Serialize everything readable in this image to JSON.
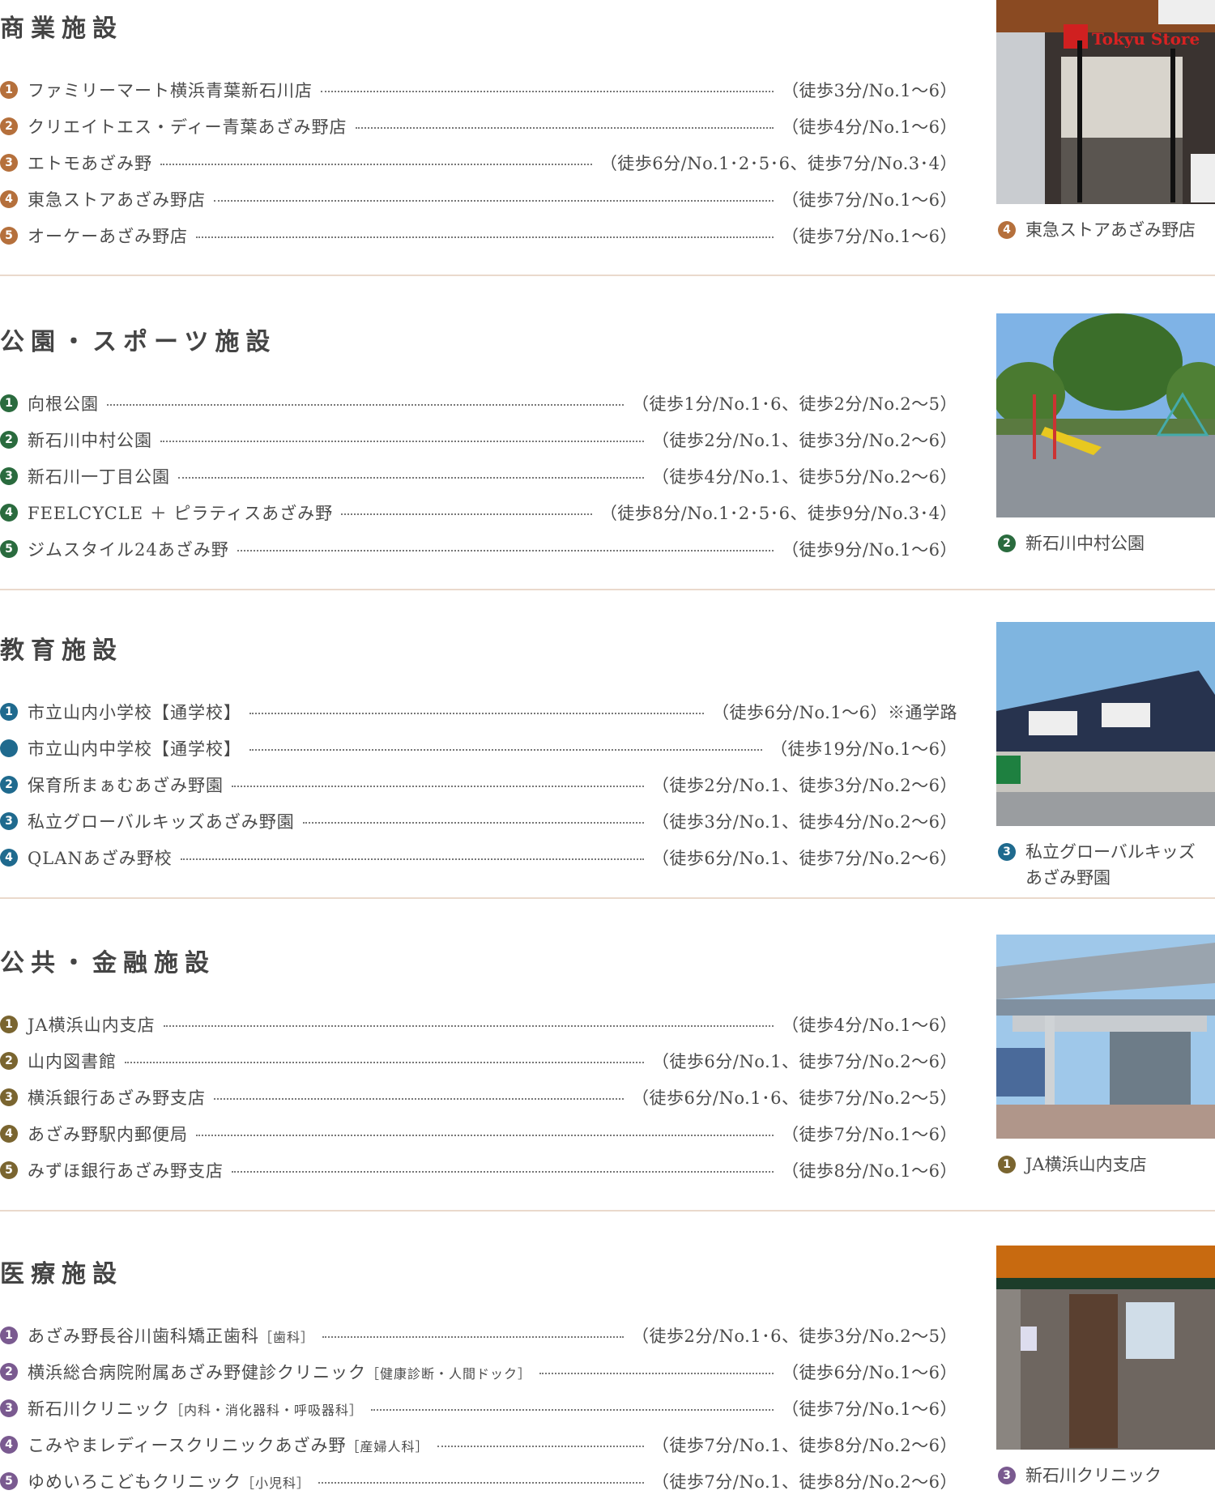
{
  "sections": [
    {
      "title": "商業施設",
      "color": "#b5703c",
      "items": [
        {
          "num": "1",
          "name": "ファミリーマート横浜青葉新石川店",
          "value": "（徒歩3分/No.1〜6）"
        },
        {
          "num": "2",
          "name": "クリエイトエス・ディー青葉あざみ野店",
          "value": "（徒歩4分/No.1〜6）"
        },
        {
          "num": "3",
          "name": "エトモあざみ野",
          "value": "（徒歩6分/No.1･2･5･6、徒歩7分/No.3･4）"
        },
        {
          "num": "4",
          "name": "東急ストアあざみ野店",
          "value": "（徒歩7分/No.1〜6）"
        },
        {
          "num": "5",
          "name": "オーケーあざみ野店",
          "value": "（徒歩7分/No.1〜6）"
        }
      ],
      "photo": {
        "subject": "store",
        "num": "4",
        "caption": "東急ストアあざみ野店",
        "sign": "Tokyu Store"
      }
    },
    {
      "title": "公園・スポーツ施設",
      "color": "#2a6b3e",
      "items": [
        {
          "num": "1",
          "name": "向根公園",
          "value": "（徒歩1分/No.1･6、徒歩2分/No.2〜5）"
        },
        {
          "num": "2",
          "name": "新石川中村公園",
          "value": "（徒歩2分/No.1、徒歩3分/No.2〜6）"
        },
        {
          "num": "3",
          "name": "新石川一丁目公園",
          "value": "（徒歩4分/No.1、徒歩5分/No.2〜6）"
        },
        {
          "num": "4",
          "name": "FEELCYCLE ＋ ピラティスあざみ野",
          "value": "（徒歩8分/No.1･2･5･6、徒歩9分/No.3･4）"
        },
        {
          "num": "5",
          "name": "ジムスタイル24あざみ野",
          "value": "（徒歩9分/No.1〜6）"
        }
      ],
      "photo": {
        "subject": "park",
        "num": "2",
        "caption": "新石川中村公園"
      }
    },
    {
      "title": "教育施設",
      "color": "#1f6a8e",
      "items": [
        {
          "num": "1",
          "name": "市立山内小学校【通学校】",
          "value": "（徒歩6分/No.1〜6）※通学路"
        },
        {
          "num": "",
          "name": "市立山内中学校【通学校】",
          "value": "（徒歩19分/No.1〜6）"
        },
        {
          "num": "2",
          "name": "保育所まぁむあざみ野園",
          "value": "（徒歩2分/No.1、徒歩3分/No.2〜6）"
        },
        {
          "num": "3",
          "name": "私立グローバルキッズあざみ野園",
          "value": "（徒歩3分/No.1、徒歩4分/No.2〜6）"
        },
        {
          "num": "4",
          "name": "QLANあざみ野校",
          "value": "（徒歩6分/No.1、徒歩7分/No.2〜6）"
        }
      ],
      "photo": {
        "subject": "school",
        "num": "3",
        "caption": "私立グローバルキッズあざみ野園"
      }
    },
    {
      "title": "公共・金融施設",
      "color": "#7a6530",
      "items": [
        {
          "num": "1",
          "name": "JA横浜山内支店",
          "value": "（徒歩4分/No.1〜6）"
        },
        {
          "num": "2",
          "name": "山内図書館",
          "value": "（徒歩6分/No.1、徒歩7分/No.2〜6）"
        },
        {
          "num": "3",
          "name": "横浜銀行あざみ野支店",
          "value": "（徒歩6分/No.1･6、徒歩7分/No.2〜5）"
        },
        {
          "num": "4",
          "name": "あざみ野駅内郵便局",
          "value": "（徒歩7分/No.1〜6）"
        },
        {
          "num": "5",
          "name": "みずほ銀行あざみ野支店",
          "value": "（徒歩8分/No.1〜6）"
        }
      ],
      "photo": {
        "subject": "bank",
        "num": "1",
        "caption": "JA横浜山内支店"
      }
    },
    {
      "title": "医療施設",
      "color": "#7a5a90",
      "items": [
        {
          "num": "1",
          "name": "あざみ野長谷川歯科矯正歯科",
          "note": "［歯科］",
          "value": "（徒歩2分/No.1･6、徒歩3分/No.2〜5）"
        },
        {
          "num": "2",
          "name": "横浜総合病院附属あざみ野健診クリニック",
          "note": "［健康診断・人間ドック］",
          "value": "（徒歩6分/No.1〜6）"
        },
        {
          "num": "3",
          "name": "新石川クリニック",
          "note": "［内科・消化器科・呼吸器科］",
          "value": "（徒歩7分/No.1〜6）"
        },
        {
          "num": "4",
          "name": "こみやまレディースクリニックあざみ野",
          "note": "［産婦人科］",
          "value": "（徒歩7分/No.1、徒歩8分/No.2〜6）"
        },
        {
          "num": "5",
          "name": "ゆめいろこどもクリニック",
          "note": "［小児科］",
          "value": "（徒歩7分/No.1、徒歩8分/No.2〜6）"
        }
      ],
      "photo": {
        "subject": "clinic",
        "num": "3",
        "caption": "新石川クリニック"
      }
    }
  ]
}
